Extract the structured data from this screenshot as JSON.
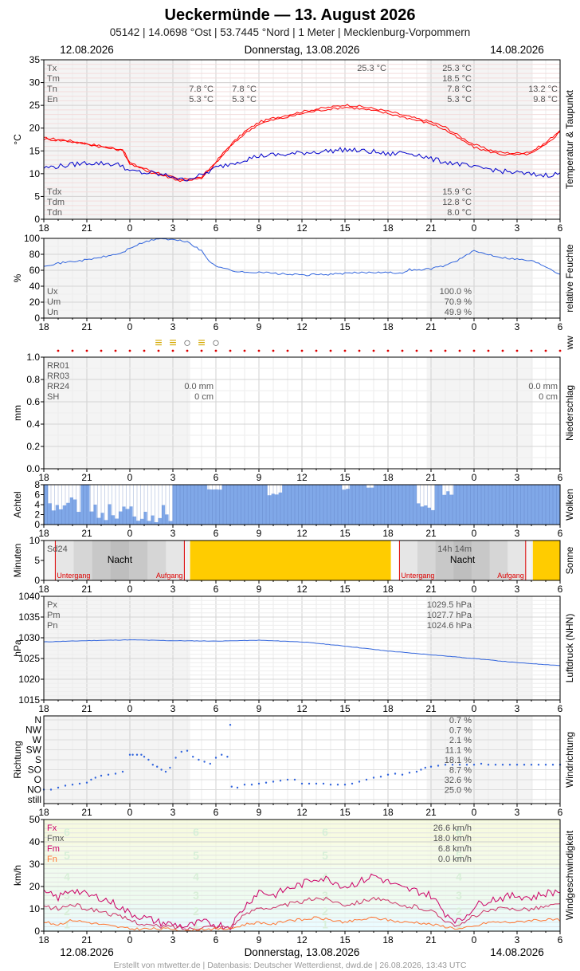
{
  "header": {
    "title": "Ueckermünde  —  13. August 2026",
    "subtitle": "05142  |  14.0698 °Ost  |  53.7445 °Nord  |  1 Meter  |  Mecklenburg-Vorpommern",
    "date_left": "12.08.2026",
    "date_center": "Donnerstag, 13.08.2026",
    "date_right": "14.08.2026"
  },
  "footer": {
    "credit": "Erstellt von mtwetter.de | Datenbasis: Deutscher Wetterdienst, dwd.de | 26.08.2026, 13:43 UTC"
  },
  "colors": {
    "temp": "#ff0000",
    "dew": "#0000cc",
    "blue": "#3366dd",
    "cloud_fill": "#80a8e8",
    "sun": "#ffcc00",
    "wind_fx": "#cc0066",
    "wind_fm": "#cc3366",
    "wind_fn": "#ff7733",
    "marker_red": "#dd0000",
    "ww_yellow": "#d4a800"
  },
  "chart_data": [
    {
      "id": "temperature",
      "type": "line",
      "ylabel": "°C",
      "side_label": "Temperatur & Taupunkt",
      "ylim": [
        0,
        35
      ],
      "yticks": [
        0,
        5,
        10,
        15,
        20,
        25,
        30,
        35
      ],
      "xticks": [
        "18",
        "21",
        "0",
        "3",
        "6",
        "9",
        "12",
        "15",
        "18",
        "21",
        "0",
        "3",
        "6"
      ],
      "x_hours": [
        0,
        1.5,
        3,
        4.5,
        5.5,
        6,
        6.5,
        7,
        7.5,
        8,
        8.5,
        9,
        9.5,
        10,
        11,
        12,
        13,
        14,
        15,
        16,
        17,
        18,
        19,
        20,
        21,
        22,
        23,
        24,
        25,
        26,
        27,
        28,
        29,
        30,
        31,
        32,
        33,
        34,
        35,
        36
      ],
      "series": [
        {
          "name": "Tx",
          "values": [
            17.8,
            17.4,
            16.6,
            15.8,
            15.3,
            12.4,
            11.7,
            11.2,
            10.6,
            10.2,
            9.6,
            9.2,
            8.6,
            8.9,
            9.2,
            12.6,
            16.3,
            19.2,
            21.3,
            22.2,
            22.9,
            23.6,
            24.2,
            24.6,
            25.1,
            24.8,
            24.3,
            23.7,
            22.9,
            22.1,
            21.4,
            20.2,
            18.2,
            16.4,
            15.3,
            14.6,
            14.5,
            14.9,
            16.8,
            19.6
          ]
        },
        {
          "name": "Tm",
          "values": [
            17.6,
            17.2,
            16.5,
            15.6,
            15.1,
            12.2,
            11.4,
            10.9,
            10.2,
            9.9,
            9.4,
            9.0,
            8.4,
            8.6,
            8.9,
            12.3,
            15.9,
            18.8,
            20.9,
            21.8,
            22.4,
            23.2,
            23.8,
            24.2,
            24.6,
            24.3,
            23.8,
            23.2,
            22.5,
            21.7,
            21.0,
            19.6,
            17.6,
            15.8,
            14.9,
            14.2,
            14.1,
            14.4,
            16.3,
            19.2
          ]
        },
        {
          "name": "Td",
          "values": [
            11.3,
            11.8,
            12.4,
            12.2,
            11.8,
            10.4,
            10.5,
            10.1,
            10.2,
            9.8,
            9.6,
            9.5,
            8.6,
            8.9,
            9.6,
            11.3,
            12.2,
            13.1,
            13.9,
            14.1,
            14.2,
            14.6,
            14.8,
            15.0,
            15.3,
            15.0,
            14.8,
            14.2,
            14.7,
            14.3,
            13.2,
            12.6,
            12.1,
            11.3,
            11.1,
            10.5,
            10.2,
            9.8,
            9.7,
            10.0
          ]
        }
      ],
      "labels_left": [
        "Tx",
        "Tm",
        "Tn",
        "En"
      ],
      "labels_left_bottom": [
        "Tdx",
        "Tdm",
        "Tdn"
      ],
      "values_tn_a": [
        "7.8 °C",
        "5.3 °C"
      ],
      "values_tn_b": [
        "7.8 °C",
        "5.3 °C"
      ],
      "values_tx_mid": "25.3 °C",
      "values_right": [
        "25.3 °C",
        "18.5 °C",
        "7.8 °C",
        "5.3 °C"
      ],
      "values_far_right": [
        "13.2 °C",
        "9.8 °C"
      ],
      "values_right_bottom": [
        "15.9 °C",
        "12.8 °C",
        "8.0 °C"
      ]
    },
    {
      "id": "humidity",
      "type": "line",
      "ylabel": "%",
      "side_label": "relative Feuchte",
      "ylim": [
        0,
        100
      ],
      "yticks": [
        0,
        20,
        40,
        60,
        80,
        100
      ],
      "xticks": [
        "18",
        "21",
        "0",
        "3",
        "6",
        "9",
        "12",
        "15",
        "18",
        "21",
        "0",
        "3",
        "6"
      ],
      "x_hours": [
        0,
        1.5,
        3,
        4.5,
        5.5,
        6,
        7,
        8,
        9,
        10,
        11,
        11.5,
        12,
        13,
        14,
        15,
        16,
        18,
        20,
        22,
        24,
        24.7,
        25.5,
        26,
        27,
        28,
        29,
        30,
        31,
        32,
        33,
        34,
        35,
        36
      ],
      "series": [
        {
          "name": "Um",
          "values": [
            66,
            70,
            73,
            78,
            82,
            88,
            95,
            100,
            98,
            96,
            84,
            72,
            66,
            60,
            57,
            58,
            56,
            54,
            55,
            57,
            58,
            55,
            61,
            60,
            62,
            66,
            74,
            84,
            80,
            76,
            74,
            72,
            65,
            55
          ]
        }
      ],
      "labels_left": [
        "Ux",
        "Um",
        "Un"
      ],
      "values_right": [
        "100.0 %",
        "70.9 %",
        "49.9 %"
      ]
    },
    {
      "id": "weather",
      "type": "table",
      "side_label": "ww",
      "symbols": [
        "≡",
        "≡",
        "○",
        "≡",
        "○"
      ],
      "symbol_hours": [
        8,
        9,
        10,
        11,
        12
      ]
    },
    {
      "id": "precip",
      "type": "bar",
      "ylabel": "mm",
      "side_label": "Niederschlag",
      "ylim": [
        0,
        1.0
      ],
      "yticks": [
        "0.0",
        "0.2",
        "0.4",
        "0.6",
        "0.8",
        "1.0"
      ],
      "xticks": [
        "18",
        "21",
        "0",
        "3",
        "6",
        "9",
        "12",
        "15",
        "18",
        "21",
        "0",
        "3",
        "6"
      ],
      "values": [],
      "labels_left": [
        "RR01",
        "RR03",
        "RR24",
        "SH"
      ],
      "values_a": [
        "0.0 mm",
        "0 cm"
      ],
      "values_b": [
        "0.0 mm",
        "0 cm"
      ]
    },
    {
      "id": "clouds",
      "type": "bar",
      "ylabel": "Achtel",
      "side_label": "Wolken",
      "ylim": [
        0,
        8
      ],
      "yticks": [
        0,
        2,
        4,
        6,
        8
      ],
      "xticks": [
        "18",
        "21",
        "0",
        "3",
        "6",
        "9",
        "12",
        "15",
        "18",
        "21",
        "0",
        "3",
        "6"
      ],
      "clear_spans": [
        [
          0.3,
          2.5,
          5
        ],
        [
          3.2,
          8.8,
          7
        ],
        [
          11.4,
          12.3,
          1
        ],
        [
          15.6,
          16.4,
          2
        ],
        [
          22.5,
          23,
          1
        ],
        [
          20.8,
          21.2,
          1
        ],
        [
          26,
          27.2,
          6
        ],
        [
          27.8,
          28.4,
          2
        ]
      ],
      "value_note": "8"
    },
    {
      "id": "sunshine",
      "type": "bar",
      "ylabel": "Minuten",
      "side_label": "Sonne",
      "ylim": [
        0,
        10
      ],
      "yticks": [
        0,
        5,
        10
      ],
      "xticks": [
        "18",
        "21",
        "0",
        "3",
        "6",
        "9",
        "12",
        "15",
        "18",
        "21",
        "0",
        "3",
        "6"
      ],
      "sun_intervals": [
        [
          10.2,
          24.2
        ],
        [
          34.1,
          36
        ]
      ],
      "night_label": "Nacht",
      "sunset_label": "Untergang",
      "sunrise_label": "Aufgang",
      "sd_label": "Sd24",
      "sd_value": "14h 14m"
    },
    {
      "id": "pressure",
      "type": "line",
      "ylabel": "hPa",
      "side_label": "Luftdruck (NHN)",
      "ylim": [
        1015,
        1040
      ],
      "yticks": [
        1015,
        1020,
        1025,
        1030,
        1035,
        1040
      ],
      "xticks": [
        "18",
        "21",
        "0",
        "3",
        "6",
        "9",
        "12",
        "15",
        "18",
        "21",
        "0",
        "3",
        "6"
      ],
      "x_hours": [
        0,
        3,
        6,
        9,
        12,
        15,
        18,
        21,
        24,
        27,
        30,
        33,
        36
      ],
      "series": [
        {
          "name": "Pm",
          "values": [
            1029.0,
            1029.3,
            1029.5,
            1029.3,
            1029.2,
            1029.4,
            1029.0,
            1028.0,
            1026.8,
            1025.9,
            1025.0,
            1024.0,
            1023.3
          ]
        }
      ],
      "labels_left": [
        "Px",
        "Pm",
        "Pn"
      ],
      "values_right": [
        "1029.5 hPa",
        "1027.7 hPa",
        "1024.6 hPa"
      ]
    },
    {
      "id": "wind_direction",
      "type": "scatter",
      "ylabel": "Richtung",
      "side_label": "Windrichtung",
      "ycats": [
        "still",
        "NO",
        "O",
        "SO",
        "S",
        "SW",
        "W",
        "NW",
        "N"
      ],
      "xticks": [
        "18",
        "21",
        "0",
        "3",
        "6",
        "9",
        "12",
        "15",
        "18",
        "21",
        "0",
        "3",
        "6"
      ],
      "points": [
        [
          0.0,
          1.0
        ],
        [
          0.5,
          1.0
        ],
        [
          1.0,
          1.2
        ],
        [
          1.5,
          1.4
        ],
        [
          2.0,
          1.5
        ],
        [
          2.5,
          1.6
        ],
        [
          3.0,
          1.7
        ],
        [
          3.3,
          2.0
        ],
        [
          3.6,
          2.2
        ],
        [
          4.0,
          2.4
        ],
        [
          4.5,
          2.5
        ],
        [
          5.0,
          2.6
        ],
        [
          5.5,
          2.8
        ],
        [
          6.0,
          4.5
        ],
        [
          6.2,
          4.5
        ],
        [
          6.5,
          4.5
        ],
        [
          6.8,
          4.5
        ],
        [
          7.0,
          4.3
        ],
        [
          7.3,
          4.0
        ],
        [
          7.6,
          3.5
        ],
        [
          7.9,
          3.3
        ],
        [
          8.2,
          3.0
        ],
        [
          8.5,
          2.8
        ],
        [
          8.8,
          3.2
        ],
        [
          9.2,
          4.2
        ],
        [
          9.6,
          4.8
        ],
        [
          10.0,
          4.9
        ],
        [
          10.4,
          4.3
        ],
        [
          10.8,
          4.0
        ],
        [
          11.2,
          3.8
        ],
        [
          11.6,
          3.6
        ],
        [
          12.0,
          4.2
        ],
        [
          12.4,
          4.5
        ],
        [
          12.8,
          4.3
        ],
        [
          13.0,
          7.5
        ],
        [
          13.1,
          1.3
        ],
        [
          13.5,
          1.2
        ],
        [
          14.0,
          1.5
        ],
        [
          14.5,
          1.5
        ],
        [
          15.0,
          1.6
        ],
        [
          15.5,
          1.7
        ],
        [
          16.0,
          1.8
        ],
        [
          16.5,
          1.9
        ],
        [
          17.0,
          2.0
        ],
        [
          17.5,
          2.0
        ],
        [
          18.0,
          1.6
        ],
        [
          18.5,
          1.6
        ],
        [
          19.0,
          1.6
        ],
        [
          19.5,
          1.6
        ],
        [
          20.0,
          1.5
        ],
        [
          20.5,
          1.5
        ],
        [
          21.0,
          1.5
        ],
        [
          21.5,
          1.6
        ],
        [
          22.0,
          1.8
        ],
        [
          22.5,
          2.0
        ],
        [
          23.0,
          2.2
        ],
        [
          23.5,
          2.3
        ],
        [
          24.0,
          2.5
        ],
        [
          24.5,
          2.6
        ],
        [
          25.0,
          2.5
        ],
        [
          25.5,
          2.7
        ],
        [
          26.0,
          2.8
        ],
        [
          26.3,
          3.0
        ],
        [
          26.6,
          3.2
        ],
        [
          27.0,
          3.3
        ],
        [
          27.5,
          3.4
        ],
        [
          28.0,
          3.5
        ],
        [
          28.5,
          3.5
        ],
        [
          29.0,
          3.5
        ],
        [
          29.5,
          3.5
        ],
        [
          30.0,
          3.5
        ],
        [
          30.5,
          3.6
        ],
        [
          31.0,
          3.5
        ],
        [
          31.5,
          3.5
        ],
        [
          32.0,
          3.5
        ],
        [
          32.5,
          3.5
        ],
        [
          33.0,
          3.5
        ],
        [
          33.5,
          3.5
        ],
        [
          34.0,
          3.5
        ],
        [
          34.5,
          3.5
        ],
        [
          35.0,
          3.5
        ],
        [
          35.5,
          3.5
        ],
        [
          36.0,
          3.5
        ]
      ],
      "values_right": [
        "0.7 %",
        "0.7 %",
        "2.1 %",
        "11.1 %",
        "18.1 %",
        "8.7 %",
        "32.6 %",
        "25.0 %"
      ]
    },
    {
      "id": "wind_speed",
      "type": "line",
      "ylabel": "km/h",
      "side_label": "Windgeschwindigkeit",
      "ylim": [
        0,
        50
      ],
      "yticks": [
        0,
        10,
        20,
        30,
        40,
        50
      ],
      "xticks": [
        "18",
        "21",
        "0",
        "3",
        "6",
        "9",
        "12",
        "15",
        "18",
        "21",
        "0",
        "3",
        "6"
      ],
      "x_hours": [
        0,
        1,
        2,
        3,
        4,
        5,
        6,
        7,
        8,
        9,
        10,
        11,
        12,
        13,
        14,
        15,
        16,
        17,
        18,
        19,
        20,
        21,
        22,
        23,
        24,
        25,
        26,
        27,
        28,
        29,
        30,
        31,
        32,
        33,
        34,
        35,
        36
      ],
      "series": [
        {
          "name": "Fx",
          "values": [
            17,
            15,
            19,
            16,
            15,
            12,
            8,
            6,
            4,
            3,
            2,
            4,
            3,
            2,
            11,
            18,
            16,
            19,
            21,
            24,
            23,
            20,
            22,
            25,
            22,
            19,
            18,
            16,
            8,
            4,
            11,
            14,
            15,
            16,
            15,
            17,
            18
          ]
        },
        {
          "name": "Fmx",
          "values": [
            11,
            10,
            12,
            10,
            9,
            7,
            5,
            3,
            2,
            2,
            1,
            2,
            2,
            2,
            7,
            11,
            10,
            12,
            13,
            15,
            14,
            12,
            13,
            15,
            13,
            11,
            11,
            9,
            5,
            2,
            7,
            9,
            10,
            10,
            10,
            11,
            12
          ]
        },
        {
          "name": "Fm",
          "values": [
            4,
            3,
            5,
            4,
            3,
            2,
            1,
            1,
            1,
            1,
            0,
            1,
            1,
            1,
            3,
            4,
            3,
            5,
            5,
            6,
            5,
            4,
            5,
            6,
            5,
            4,
            4,
            3,
            2,
            1,
            2,
            4,
            4,
            4,
            5,
            5,
            5
          ]
        }
      ],
      "bft_labels": [
        "1",
        "2",
        "3",
        "4",
        "5",
        "6"
      ],
      "labels_left": [
        "Fx",
        "Fmx",
        "Fm",
        "Fn"
      ],
      "values_right": [
        "26.6 km/h",
        "18.0 km/h",
        "6.8 km/h",
        "0.0 km/h"
      ]
    }
  ]
}
